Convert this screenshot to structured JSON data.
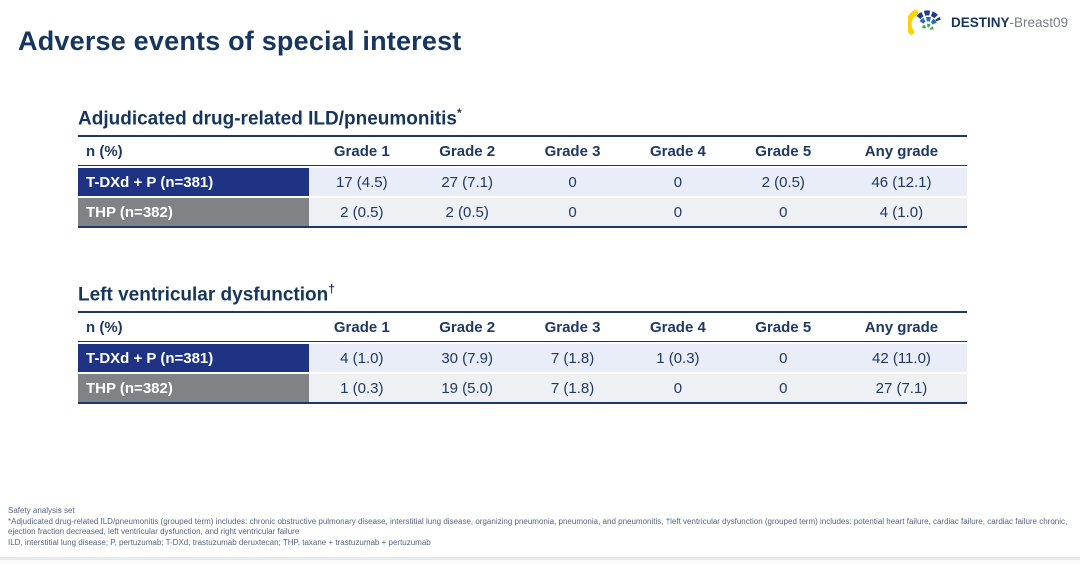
{
  "slide": {
    "title": "Adverse events of special interest",
    "logo": {
      "brand_bold": "DESTINY",
      "brand_rest": "-Breast09"
    }
  },
  "tables": [
    {
      "heading": "Adjudicated drug-related ILD/pneumonitis",
      "heading_mark": "*",
      "columns": [
        "n (%)",
        "Grade 1",
        "Grade 2",
        "Grade 3",
        "Grade 4",
        "Grade 5",
        "Any grade"
      ],
      "rows": [
        {
          "label": "T-DXd + P (n=381)",
          "values": [
            "17 (4.5)",
            "27 (7.1)",
            "0",
            "0",
            "2 (0.5)",
            "46 (12.1)"
          ]
        },
        {
          "label": "THP (n=382)",
          "values": [
            "2 (0.5)",
            "2 (0.5)",
            "0",
            "0",
            "0",
            "4 (1.0)"
          ]
        }
      ]
    },
    {
      "heading": "Left ventricular dysfunction",
      "heading_mark": "†",
      "columns": [
        "n (%)",
        "Grade 1",
        "Grade 2",
        "Grade 3",
        "Grade 4",
        "Grade 5",
        "Any grade"
      ],
      "rows": [
        {
          "label": "T-DXd + P (n=381)",
          "values": [
            "4 (1.0)",
            "30 (7.9)",
            "7 (1.8)",
            "1 (0.3)",
            "0",
            "42 (11.0)"
          ]
        },
        {
          "label": "THP (n=382)",
          "values": [
            "1 (0.3)",
            "19 (5.0)",
            "7 (1.8)",
            "0",
            "0",
            "27 (7.1)"
          ]
        }
      ]
    }
  ],
  "footnotes": [
    "Safety analysis set",
    "*Adjudicated drug-related ILD/pneumonitis (grouped term) includes: chronic obstructive pulmonary disease, interstitial lung disease, organizing pneumonia, pneumonia, and pneumonitis, †left ventricular dysfunction (grouped term) includes: potential heart failure, cardiac failure, cardiac failure chronic, ejection fraction decreased, left ventricular dysfunction, and right ventricular failure",
    "ILD, interstitial lung disease; P, pertuzumab; T-DXd, trastuzumab deruxtecan; THP, taxane + trastuzumab + pertuzumab"
  ],
  "colors": {
    "title_navy": "#17365d",
    "table_border_navy": "#1f3864",
    "row_tdxd_bg": "#1e3383",
    "row_thp_bg": "#808285",
    "cell_tdxd_bg": "#e9edf7",
    "cell_thp_bg": "#eff0f3",
    "footnote_text": "#566480",
    "logo_yellow": "#ffd100",
    "logo_blue": "#2b6cb8",
    "logo_dark_blue": "#1f3c88",
    "logo_green": "#3aa655"
  }
}
